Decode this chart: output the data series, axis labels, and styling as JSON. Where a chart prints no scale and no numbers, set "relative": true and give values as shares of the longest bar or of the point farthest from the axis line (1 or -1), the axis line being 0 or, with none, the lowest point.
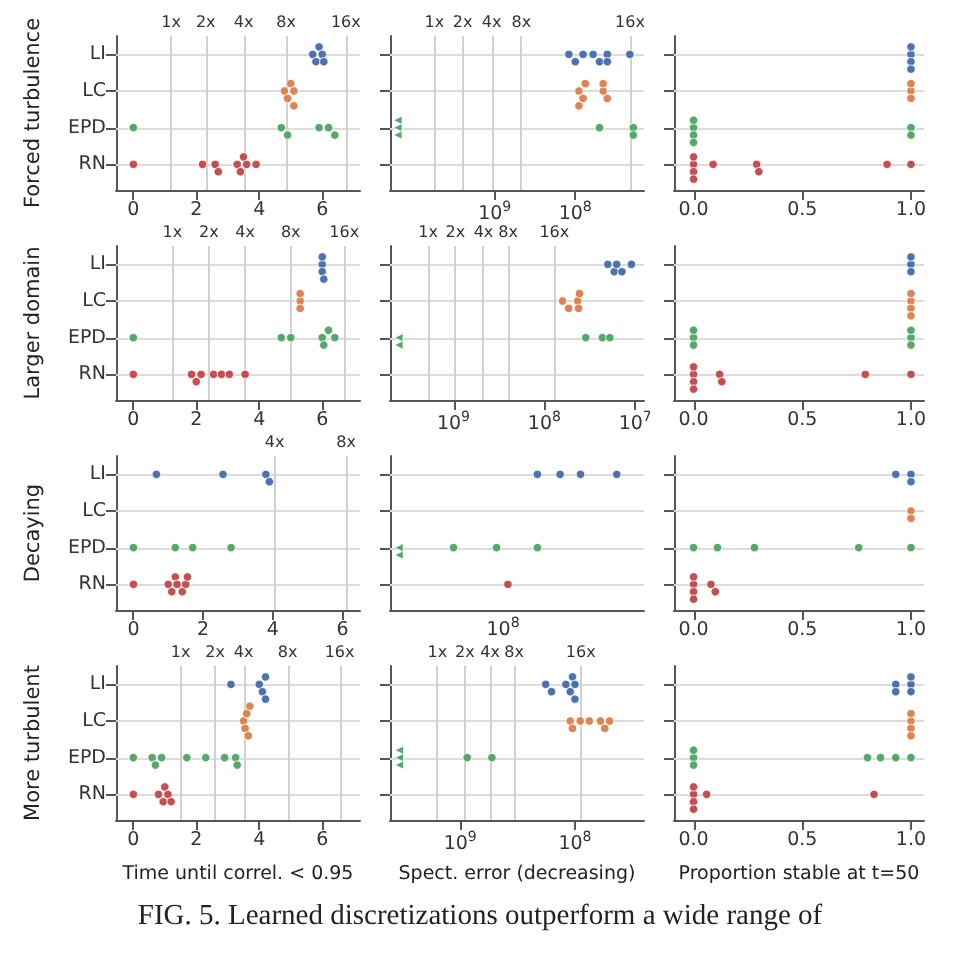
{
  "chart_data": [
    {
      "type": "scatter",
      "orientation": "horizontal",
      "ylabel": "Forced turbulence",
      "categories": [
        "LI",
        "LC",
        "EPD",
        "RN"
      ],
      "xlim": [
        -0.55,
        7.2
      ],
      "xticks": [
        0,
        2,
        4,
        6
      ],
      "grid": "y",
      "marker": "circle",
      "ref_lines": [
        {
          "axis": "x",
          "value": 1.2,
          "label": "1x"
        },
        {
          "axis": "x",
          "value": 2.3,
          "label": "2x"
        },
        {
          "axis": "x",
          "value": 3.5,
          "label": "4x"
        },
        {
          "axis": "x",
          "value": 4.85,
          "label": "8x"
        },
        {
          "axis": "x",
          "value": 6.75,
          "label": "16x"
        }
      ],
      "series": [
        {
          "color": "#4c72b0",
          "x": [
            "LI",
            "LI",
            "LI",
            "LI",
            "LI"
          ],
          "values": [
            5.7,
            5.8,
            5.9,
            6.0,
            6.05
          ]
        },
        {
          "color": "#dd8452",
          "x": [
            "LC",
            "LC",
            "LC",
            "LC",
            "LC"
          ],
          "values": [
            4.8,
            4.9,
            5.0,
            5.1,
            5.1
          ]
        },
        {
          "color": "#55a868",
          "x": [
            "EPD",
            "EPD",
            "EPD",
            "EPD",
            "EPD",
            "EPD"
          ],
          "values": [
            0,
            4.7,
            4.9,
            5.9,
            6.2,
            6.4
          ]
        },
        {
          "color": "#c44e52",
          "x": [
            "RN",
            "RN",
            "RN",
            "RN",
            "RN",
            "RN",
            "RN",
            "RN",
            "RN"
          ],
          "values": [
            0,
            2.2,
            2.6,
            2.7,
            3.3,
            3.4,
            3.5,
            3.6,
            3.9
          ]
        }
      ]
    },
    {
      "type": "scatter",
      "orientation": "horizontal",
      "categories": [
        "LI",
        "LC",
        "EPD",
        "RN"
      ],
      "log": "x",
      "xlim": [
        20000000000.0,
        14000000.0
      ],
      "xticks": [
        {
          "value": 1000000000.0,
          "label": "10$^{9}$"
        },
        {
          "value": 100000000.0,
          "label": "10$^{8}$"
        }
      ],
      "grid": "y",
      "marker": "circle",
      "tick_labels": "x",
      "ref_lines": [
        {
          "axis": "x",
          "value": 5600000000.0,
          "label": "1x"
        },
        {
          "axis": "x",
          "value": 2500000000.0,
          "label": "2x"
        },
        {
          "axis": "x",
          "value": 1100000000.0,
          "label": "4x"
        },
        {
          "axis": "x",
          "value": 470000000.0,
          "label": "8x"
        },
        {
          "axis": "x",
          "value": 21000000.0,
          "label": "16x"
        }
      ],
      "series": [
        {
          "color": "#4c72b0",
          "x": [
            "LI",
            "LI",
            "LI",
            "LI",
            "LI",
            "LI",
            "LI",
            "LI"
          ],
          "values": [
            120000000.0,
            100000000.0,
            80000000.0,
            60000000.0,
            50000000.0,
            40000000.0,
            40000000.0,
            21000000.0
          ]
        },
        {
          "color": "#dd8452",
          "x": [
            "LC",
            "LC",
            "LC",
            "LC",
            "LC",
            "LC",
            "LC"
          ],
          "values": [
            90000000.0,
            80000000.0,
            75000000.0,
            90000000.0,
            45000000.0,
            40000000.0,
            45000000.0
          ]
        },
        {
          "color": "#55a868",
          "x": [
            "EPD",
            "EPD",
            "EPD"
          ],
          "values": [
            50000000.0,
            19000000.0,
            19000000.0
          ]
        },
        {
          "color": "#55a868",
          "marker": "triangle",
          "x": [
            "EPD",
            "EPD",
            "EPD"
          ],
          "values": [
            16000000000.0,
            16000000000.0,
            16000000000.0
          ]
        }
      ]
    },
    {
      "type": "scatter",
      "orientation": "horizontal",
      "categories": [
        "LI",
        "LC",
        "EPD",
        "RN"
      ],
      "xlim": [
        -0.09,
        1.06
      ],
      "xticks": [
        {
          "value": 0,
          "label": "0.0"
        },
        {
          "value": 0.5,
          "label": "0.5"
        },
        {
          "value": 1,
          "label": "1.0"
        }
      ],
      "grid": "y",
      "marker": "circle",
      "tick_labels": "x",
      "series": [
        {
          "color": "#4c72b0",
          "x": [
            "LI",
            "LI",
            "LI",
            "LI"
          ],
          "values": [
            1,
            1,
            1,
            1
          ]
        },
        {
          "color": "#dd8452",
          "x": [
            "LC",
            "LC",
            "LC"
          ],
          "values": [
            1,
            1,
            1
          ]
        },
        {
          "color": "#55a868",
          "x": [
            "EPD",
            "EPD",
            "EPD",
            "EPD",
            "EPD",
            "EPD"
          ],
          "values": [
            0,
            0,
            0,
            0,
            1,
            1
          ]
        },
        {
          "color": "#c44e52",
          "x": [
            "RN",
            "RN",
            "RN",
            "RN",
            "RN",
            "RN",
            "RN",
            "RN",
            "RN"
          ],
          "values": [
            0,
            0,
            0,
            0,
            0.09,
            0.29,
            0.3,
            0.89,
            1
          ]
        }
      ]
    },
    {
      "type": "scatter",
      "orientation": "horizontal",
      "ylabel": "Larger domain",
      "categories": [
        "LI",
        "LC",
        "EPD",
        "RN"
      ],
      "xlim": [
        -0.55,
        7.2
      ],
      "xticks": [
        0,
        2,
        4,
        6
      ],
      "grid": "y",
      "marker": "circle",
      "ref_lines": [
        {
          "axis": "x",
          "value": 1.24,
          "label": "1x"
        },
        {
          "axis": "x",
          "value": 2.4,
          "label": "2x"
        },
        {
          "axis": "x",
          "value": 3.55,
          "label": "4x"
        },
        {
          "axis": "x",
          "value": 5.0,
          "label": "8x"
        },
        {
          "axis": "x",
          "value": 6.7,
          "label": "16x"
        }
      ],
      "series": [
        {
          "color": "#4c72b0",
          "x": [
            "LI",
            "LI",
            "LI",
            "LI"
          ],
          "values": [
            6.0,
            6.0,
            6.0,
            6.05
          ]
        },
        {
          "color": "#dd8452",
          "x": [
            "LC",
            "LC",
            "LC"
          ],
          "values": [
            5.3,
            5.3,
            5.3
          ]
        },
        {
          "color": "#55a868",
          "x": [
            "EPD",
            "EPD",
            "EPD",
            "EPD",
            "EPD",
            "EPD",
            "EPD"
          ],
          "values": [
            0,
            4.7,
            5.0,
            6.0,
            6.05,
            6.2,
            6.4
          ]
        },
        {
          "color": "#c44e52",
          "x": [
            "RN",
            "RN",
            "RN",
            "RN",
            "RN",
            "RN",
            "RN",
            "RN"
          ],
          "values": [
            0,
            1.85,
            2.0,
            2.15,
            2.55,
            2.8,
            3.05,
            3.55
          ]
        }
      ]
    },
    {
      "type": "scatter",
      "orientation": "horizontal",
      "categories": [
        "LI",
        "LC",
        "EPD",
        "RN"
      ],
      "log": "x",
      "xlim": [
        5000000000.0,
        8000000.0
      ],
      "xticks": [
        {
          "value": 1000000000.0,
          "label": "10$^{9}$"
        },
        {
          "value": 100000000.0,
          "label": "10$^{8}$"
        },
        {
          "value": 10000000.0,
          "label": "10$^{7}$"
        }
      ],
      "grid": "y",
      "marker": "circle",
      "tick_labels": "x",
      "ref_lines": [
        {
          "axis": "x",
          "value": 1900000000.0,
          "label": "1x"
        },
        {
          "axis": "x",
          "value": 950000000.0,
          "label": "2x"
        },
        {
          "axis": "x",
          "value": 470000000.0,
          "label": "4x"
        },
        {
          "axis": "x",
          "value": 250000000.0,
          "label": "8x"
        },
        {
          "axis": "x",
          "value": 78000000.0,
          "label": "16x"
        }
      ],
      "series": [
        {
          "color": "#4c72b0",
          "x": [
            "LI",
            "LI",
            "LI",
            "LI",
            "LI"
          ],
          "values": [
            20000000.0,
            17000000.0,
            16000000.0,
            14000000.0,
            11000000.0
          ]
        },
        {
          "color": "#dd8452",
          "x": [
            "LC",
            "LC",
            "LC",
            "LC",
            "LC"
          ],
          "values": [
            63000000.0,
            54000000.0,
            43000000.0,
            42000000.0,
            41000000.0
          ]
        },
        {
          "color": "#55a868",
          "x": [
            "EPD",
            "EPD",
            "EPD"
          ],
          "values": [
            35000000.0,
            23000000.0,
            19000000.0
          ]
        },
        {
          "color": "#55a868",
          "marker": "triangle",
          "x": [
            "EPD",
            "EPD"
          ],
          "values": [
            4000000000.0,
            4000000000.0
          ]
        }
      ]
    },
    {
      "type": "scatter",
      "orientation": "horizontal",
      "categories": [
        "LI",
        "LC",
        "EPD",
        "RN"
      ],
      "xlim": [
        -0.09,
        1.06
      ],
      "xticks": [
        {
          "value": 0,
          "label": "0.0"
        },
        {
          "value": 0.5,
          "label": "0.5"
        },
        {
          "value": 1,
          "label": "1.0"
        }
      ],
      "grid": "y",
      "marker": "circle",
      "tick_labels": "x",
      "series": [
        {
          "color": "#4c72b0",
          "x": [
            "LI",
            "LI",
            "LI"
          ],
          "values": [
            1,
            1,
            1
          ]
        },
        {
          "color": "#dd8452",
          "x": [
            "LC",
            "LC",
            "LC",
            "LC"
          ],
          "values": [
            1,
            1,
            1,
            1
          ]
        },
        {
          "color": "#55a868",
          "x": [
            "EPD",
            "EPD",
            "EPD",
            "EPD",
            "EPD",
            "EPD"
          ],
          "values": [
            0,
            0,
            0,
            1,
            1,
            1
          ]
        },
        {
          "color": "#c44e52",
          "x": [
            "RN",
            "RN",
            "RN",
            "RN",
            "RN",
            "RN",
            "RN",
            "RN"
          ],
          "values": [
            0,
            0,
            0,
            0,
            0.12,
            0.13,
            0.79,
            1
          ]
        }
      ]
    },
    {
      "type": "scatter",
      "orientation": "horizontal",
      "ylabel": "Decaying",
      "categories": [
        "LI",
        "LC",
        "EPD",
        "RN"
      ],
      "xlim": [
        -0.5,
        6.5
      ],
      "xticks": [
        0,
        2,
        4,
        6
      ],
      "grid": "y",
      "marker": "circle",
      "ref_lines": [
        {
          "axis": "x",
          "value": 4.05,
          "label": "4x"
        },
        {
          "axis": "x",
          "value": 6.1,
          "label": "8x"
        }
      ],
      "series": [
        {
          "color": "#4c72b0",
          "x": [
            "LI",
            "LI",
            "LI",
            "LI"
          ],
          "values": [
            0.66,
            2.57,
            3.8,
            3.9
          ]
        },
        {
          "color": "#55a868",
          "x": [
            "EPD",
            "EPD",
            "EPD",
            "EPD"
          ],
          "values": [
            0,
            1.2,
            1.7,
            2.8
          ]
        },
        {
          "color": "#c44e52",
          "x": [
            "RN",
            "RN",
            "RN",
            "RN",
            "RN",
            "RN",
            "RN",
            "RN"
          ],
          "values": [
            0,
            1.0,
            1.1,
            1.2,
            1.25,
            1.4,
            1.5,
            1.55
          ]
        }
      ]
    },
    {
      "type": "scatter",
      "orientation": "horizontal",
      "relative": true,
      "categories": [
        "LI",
        "LC",
        "EPD",
        "RN"
      ],
      "grid": "y",
      "marker": "circle",
      "tick_labels": "x",
      "annotations": [
        "10$^{8}$"
      ],
      "series": [
        {
          "color": "#4c72b0",
          "x": [
            "LI",
            "LI",
            "LI",
            "LI"
          ],
          "values": [
            0.65,
            0.75,
            0.84,
            1.0
          ]
        },
        {
          "color": "#55a868",
          "x": [
            "EPD",
            "EPD",
            "EPD"
          ],
          "values": [
            0.28,
            0.47,
            0.65
          ]
        },
        {
          "color": "#55a868",
          "marker": "triangle",
          "x": [
            "EPD",
            "EPD"
          ],
          "values": [
            0.04,
            0.04
          ]
        },
        {
          "color": "#c44e52",
          "x": [
            "RN"
          ],
          "values": [
            0.52
          ]
        }
      ]
    },
    {
      "type": "scatter",
      "orientation": "horizontal",
      "categories": [
        "LI",
        "LC",
        "EPD",
        "RN"
      ],
      "xlim": [
        -0.09,
        1.06
      ],
      "xticks": [
        {
          "value": 0,
          "label": "0.0"
        },
        {
          "value": 0.5,
          "label": "0.5"
        },
        {
          "value": 1,
          "label": "1.0"
        }
      ],
      "grid": "y",
      "marker": "circle",
      "tick_labels": "x",
      "series": [
        {
          "color": "#4c72b0",
          "x": [
            "LI",
            "LI",
            "LI"
          ],
          "values": [
            0.93,
            1,
            1
          ]
        },
        {
          "color": "#dd8452",
          "x": [
            "LC",
            "LC"
          ],
          "values": [
            1,
            1
          ]
        },
        {
          "color": "#55a868",
          "x": [
            "EPD",
            "EPD",
            "EPD",
            "EPD",
            "EPD"
          ],
          "values": [
            0,
            0.11,
            0.28,
            0.76,
            1
          ]
        },
        {
          "color": "#c44e52",
          "x": [
            "RN",
            "RN",
            "RN",
            "RN",
            "RN",
            "RN"
          ],
          "values": [
            0,
            0,
            0,
            0,
            0.08,
            0.1
          ]
        }
      ]
    },
    {
      "type": "scatter",
      "orientation": "horizontal",
      "ylabel": "More turbulent",
      "xlabel": "Time until correl. < 0.95",
      "categories": [
        "LI",
        "LC",
        "EPD",
        "RN"
      ],
      "xlim": [
        -0.55,
        7.2
      ],
      "xticks": [
        0,
        2,
        4,
        6
      ],
      "grid": "y",
      "marker": "circle",
      "ref_lines": [
        {
          "axis": "x",
          "value": 1.5,
          "label": "1x"
        },
        {
          "axis": "x",
          "value": 2.6,
          "label": "2x"
        },
        {
          "axis": "x",
          "value": 3.5,
          "label": "4x"
        },
        {
          "axis": "x",
          "value": 4.9,
          "label": "8x"
        },
        {
          "axis": "x",
          "value": 6.55,
          "label": "16x"
        }
      ],
      "series": [
        {
          "color": "#4c72b0",
          "x": [
            "LI",
            "LI",
            "LI",
            "LI",
            "LI"
          ],
          "values": [
            3.1,
            4.0,
            4.1,
            4.2,
            4.2
          ]
        },
        {
          "color": "#dd8452",
          "x": [
            "LC",
            "LC",
            "LC",
            "LC",
            "LC"
          ],
          "values": [
            3.5,
            3.55,
            3.6,
            3.65,
            3.7
          ]
        },
        {
          "color": "#55a868",
          "x": [
            "EPD",
            "EPD",
            "EPD",
            "EPD",
            "EPD",
            "EPD",
            "EPD",
            "EPD",
            "EPD"
          ],
          "values": [
            0,
            0.6,
            0.7,
            0.9,
            1.7,
            2.3,
            2.9,
            3.25,
            3.3
          ]
        },
        {
          "color": "#c44e52",
          "x": [
            "RN",
            "RN",
            "RN",
            "RN",
            "RN",
            "RN"
          ],
          "values": [
            0,
            0.8,
            0.95,
            1.0,
            1.1,
            1.2
          ]
        }
      ]
    },
    {
      "type": "scatter",
      "orientation": "horizontal",
      "xlabel": "Spect. error (decreasing)",
      "categories": [
        "LI",
        "LC",
        "EPD",
        "RN"
      ],
      "log": "x",
      "xlim": [
        4100000000.0,
        25000000.0
      ],
      "xticks": [
        {
          "value": 1000000000.0,
          "label": "10$^{9}$"
        },
        {
          "value": 100000000.0,
          "label": "10$^{8}$"
        }
      ],
      "grid": "y",
      "marker": "circle",
      "tick_labels": "x",
      "ref_lines": [
        {
          "axis": "x",
          "value": 1600000000.0,
          "label": "1x"
        },
        {
          "axis": "x",
          "value": 910000000.0,
          "label": "2x"
        },
        {
          "axis": "x",
          "value": 550000000.0,
          "label": "4x"
        },
        {
          "axis": "x",
          "value": 340000000.0,
          "label": "8x"
        },
        {
          "axis": "x",
          "value": 89000000.0,
          "label": "16x"
        }
      ],
      "series": [
        {
          "color": "#4c72b0",
          "x": [
            "LI",
            "LI",
            "LI",
            "LI",
            "LI",
            "LI",
            "LI"
          ],
          "values": [
            180000000.0,
            160000000.0,
            120000000.0,
            110000000.0,
            105000000.0,
            100000000.0,
            100000000.0
          ]
        },
        {
          "color": "#dd8452",
          "x": [
            "LC",
            "LC",
            "LC",
            "LC",
            "LC",
            "LC",
            "LC"
          ],
          "values": [
            110000000.0,
            105000000.0,
            90000000.0,
            75000000.0,
            60000000.0,
            55000000.0,
            50000000.0
          ]
        },
        {
          "color": "#55a868",
          "x": [
            "EPD",
            "EPD"
          ],
          "values": [
            870000000.0,
            530000000.0
          ]
        },
        {
          "color": "#55a868",
          "marker": "triangle",
          "x": [
            "EPD",
            "EPD",
            "EPD"
          ],
          "values": [
            3400000000.0,
            3400000000.0,
            3400000000.0
          ]
        }
      ]
    },
    {
      "type": "scatter",
      "orientation": "horizontal",
      "xlabel": "Proportion stable at t=50",
      "categories": [
        "LI",
        "LC",
        "EPD",
        "RN"
      ],
      "xlim": [
        -0.09,
        1.06
      ],
      "xticks": [
        {
          "value": 0,
          "label": "0.0"
        },
        {
          "value": 0.5,
          "label": "0.5"
        },
        {
          "value": 1,
          "label": "1.0"
        }
      ],
      "grid": "y",
      "marker": "circle",
      "tick_labels": "x",
      "annotations": [
        "FIG. 5. Learned discretizations outperform a wide range of"
      ],
      "series": [
        {
          "color": "#4c72b0",
          "x": [
            "LI",
            "LI",
            "LI",
            "LI",
            "LI"
          ],
          "values": [
            0.93,
            0.93,
            1,
            1,
            1
          ]
        },
        {
          "color": "#dd8452",
          "x": [
            "LC",
            "LC",
            "LC",
            "LC"
          ],
          "values": [
            1,
            1,
            1,
            1
          ]
        },
        {
          "color": "#55a868",
          "x": [
            "EPD",
            "EPD",
            "EPD",
            "EPD",
            "EPD",
            "EPD",
            "EPD"
          ],
          "values": [
            0,
            0,
            0,
            0.8,
            0.86,
            0.93,
            1
          ]
        },
        {
          "color": "#c44e52",
          "x": [
            "RN",
            "RN",
            "RN",
            "RN",
            "RN",
            "RN"
          ],
          "values": [
            0,
            0,
            0,
            0,
            0.06,
            0.83
          ]
        }
      ]
    }
  ]
}
